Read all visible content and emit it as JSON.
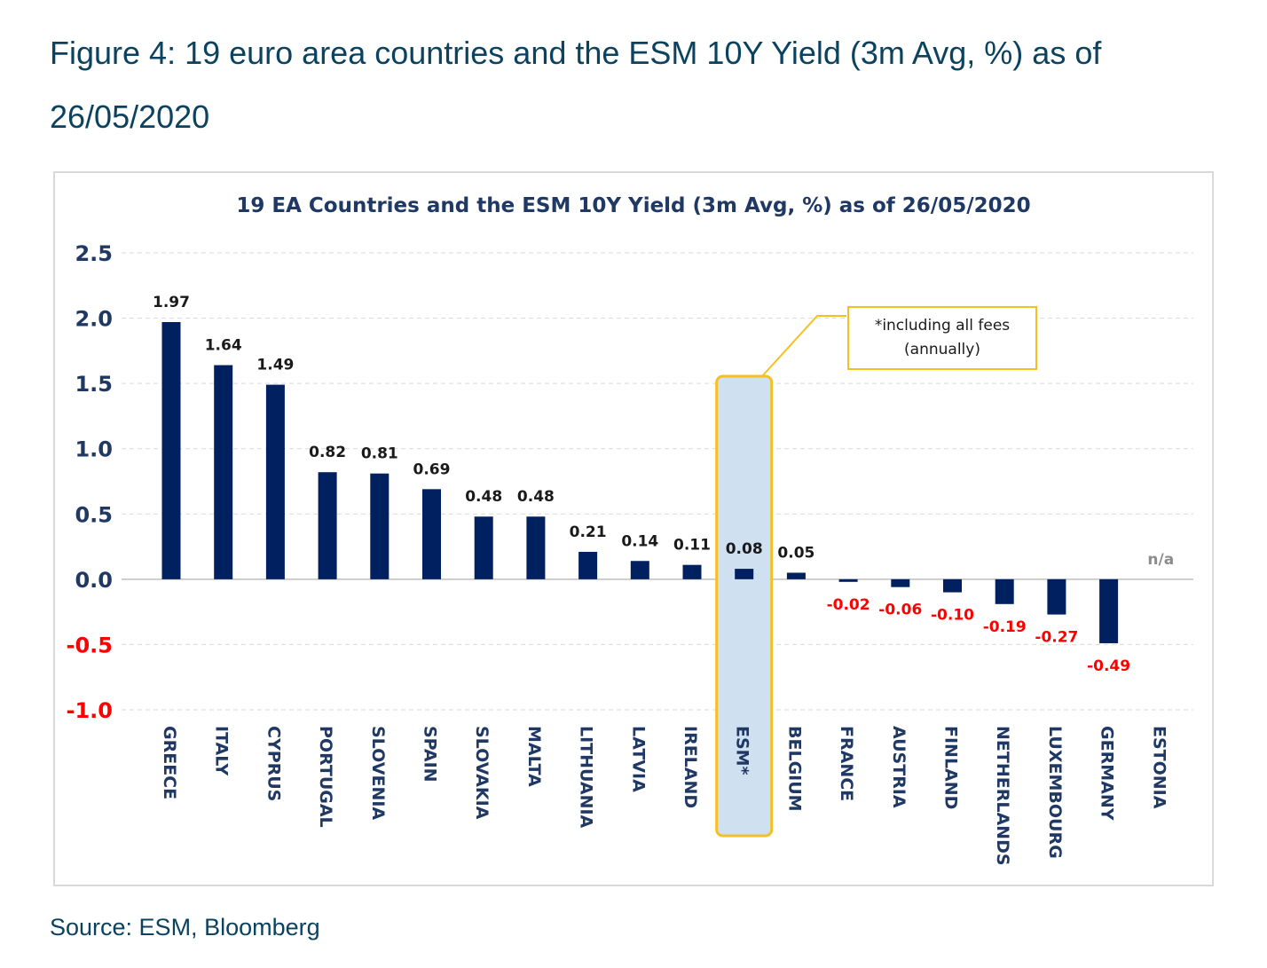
{
  "figure_title": "Figure 4: 19 euro area countries and the ESM 10Y Yield (3m Avg, %) as of 26/05/2020",
  "source": "Source: ESM, Bloomberg",
  "colors": {
    "bar": "#002060",
    "negative_label": "#ff0000",
    "highlight_fill": "#cfe0f1",
    "highlight_border": "#f5c020",
    "na_label": "#8c8c8c",
    "title_text": "#0b4260"
  },
  "annotation": {
    "line1": "*including all fees",
    "line2": "(annually)"
  },
  "chart_data": {
    "type": "bar",
    "title": "19 EA Countries and the ESM 10Y Yield (3m Avg, %) as of 26/05/2020",
    "xlabel": "",
    "ylabel": "",
    "ylim": [
      -1.0,
      2.5
    ],
    "yticks": [
      2.5,
      2.0,
      1.5,
      1.0,
      0.5,
      0.0,
      -0.5,
      -1.0
    ],
    "ytick_labels": [
      "2.5",
      "2.0",
      "1.5",
      "1.0",
      "0.5",
      "0.0",
      "-0.5",
      "-1.0"
    ],
    "grid": true,
    "categories": [
      "GREECE",
      "ITALY",
      "CYPRUS",
      "PORTUGAL",
      "SLOVENIA",
      "SPAIN",
      "SLOVAKIA",
      "MALTA",
      "LITHUANIA",
      "LATVIA",
      "IRELAND",
      "ESM*",
      "BELGIUM",
      "FRANCE",
      "AUSTRIA",
      "FINLAND",
      "NETHERLANDS",
      "LUXEMBOURG",
      "GERMANY",
      "ESTONIA"
    ],
    "values": [
      1.97,
      1.64,
      1.49,
      0.82,
      0.81,
      0.69,
      0.48,
      0.48,
      0.21,
      0.14,
      0.11,
      0.08,
      0.05,
      -0.02,
      -0.06,
      -0.1,
      -0.19,
      -0.27,
      -0.49,
      null
    ],
    "value_labels": [
      "1.97",
      "1.64",
      "1.49",
      "0.82",
      "0.81",
      "0.69",
      "0.48",
      "0.48",
      "0.21",
      "0.14",
      "0.11",
      "0.08",
      "0.05",
      "-0.02",
      "-0.06",
      "-0.10",
      "-0.19",
      "-0.27",
      "-0.49",
      "n/a"
    ],
    "highlight_category": "ESM*"
  }
}
